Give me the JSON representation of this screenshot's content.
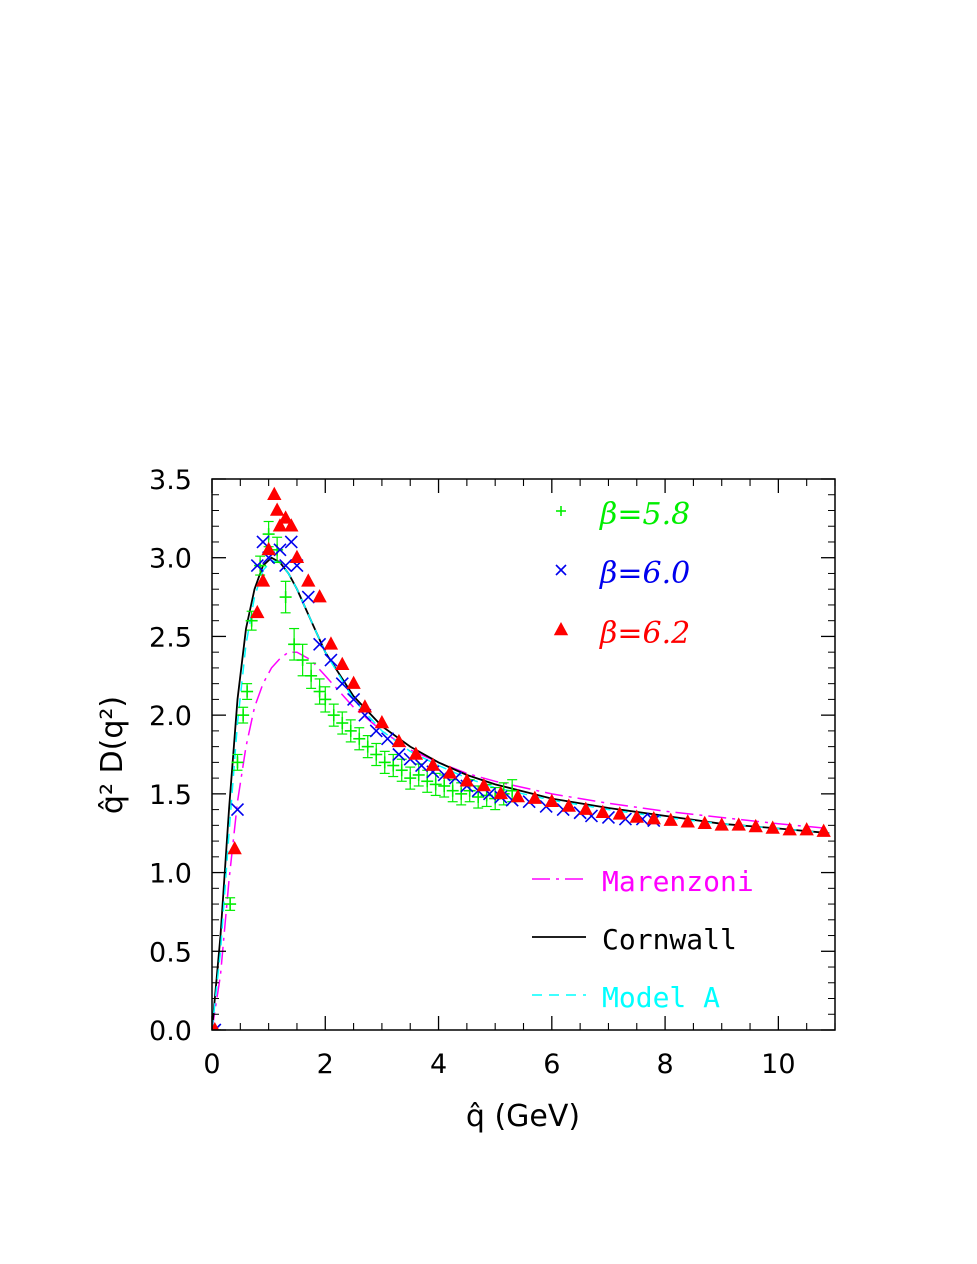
{
  "chart_data": {
    "type": "scatter",
    "xlabel": "q̂ (GeV)",
    "ylabel": "q̂² D(q²)",
    "xlim": [
      0,
      11
    ],
    "ylim": [
      0,
      3.5
    ],
    "x_ticks": [
      "0",
      "2",
      "4",
      "6",
      "8",
      "10"
    ],
    "y_ticks": [
      "0.0",
      "0.5",
      "1.0",
      "1.5",
      "2.0",
      "2.5",
      "3.0",
      "3.5"
    ],
    "legend_position": "top-right",
    "series": [
      {
        "name": "β=5.8",
        "marker": "plus-errorbar",
        "color": "#00ee00",
        "x": [
          0.05,
          0.32,
          0.45,
          0.55,
          0.62,
          0.7,
          0.85,
          1.0,
          1.15,
          1.3,
          1.45,
          1.6,
          1.75,
          1.9,
          2.0,
          2.15,
          2.3,
          2.45,
          2.6,
          2.75,
          2.9,
          3.05,
          3.2,
          3.35,
          3.5,
          3.65,
          3.8,
          3.95,
          4.1,
          4.25,
          4.4,
          4.55,
          4.7,
          4.85,
          5.0,
          5.15,
          5.3
        ],
        "y": [
          0.0,
          0.8,
          1.7,
          2.0,
          2.15,
          2.6,
          2.95,
          3.15,
          3.05,
          2.75,
          2.45,
          2.35,
          2.25,
          2.15,
          2.1,
          2.0,
          1.95,
          1.9,
          1.85,
          1.8,
          1.75,
          1.7,
          1.68,
          1.65,
          1.6,
          1.62,
          1.58,
          1.56,
          1.55,
          1.52,
          1.5,
          1.52,
          1.48,
          1.49,
          1.47,
          1.5,
          1.52
        ],
        "err": [
          0.0,
          0.04,
          0.05,
          0.05,
          0.05,
          0.06,
          0.06,
          0.08,
          0.08,
          0.1,
          0.1,
          0.1,
          0.08,
          0.08,
          0.08,
          0.07,
          0.07,
          0.07,
          0.07,
          0.07,
          0.07,
          0.07,
          0.07,
          0.07,
          0.07,
          0.07,
          0.07,
          0.07,
          0.07,
          0.07,
          0.07,
          0.07,
          0.07,
          0.07,
          0.07,
          0.07,
          0.07
        ]
      },
      {
        "name": "β=6.0",
        "marker": "cross",
        "color": "#0000ee",
        "x": [
          0.05,
          0.45,
          0.8,
          0.9,
          1.0,
          1.2,
          1.3,
          1.4,
          1.5,
          1.7,
          1.9,
          2.1,
          2.3,
          2.5,
          2.7,
          2.9,
          3.1,
          3.3,
          3.5,
          3.7,
          3.9,
          4.1,
          4.3,
          4.5,
          4.7,
          4.9,
          5.1,
          5.3,
          5.6,
          5.9,
          6.2,
          6.5,
          6.7,
          7.0,
          7.3,
          7.6,
          7.8
        ],
        "y": [
          0.0,
          1.4,
          2.95,
          3.1,
          3.0,
          3.05,
          2.95,
          3.1,
          2.95,
          2.75,
          2.45,
          2.35,
          2.2,
          2.1,
          2.0,
          1.9,
          1.85,
          1.75,
          1.72,
          1.68,
          1.64,
          1.62,
          1.6,
          1.55,
          1.52,
          1.5,
          1.48,
          1.46,
          1.45,
          1.42,
          1.4,
          1.38,
          1.36,
          1.35,
          1.34,
          1.34,
          1.33
        ]
      },
      {
        "name": "β=6.2",
        "marker": "filled-triangle",
        "color": "#ff0000",
        "x": [
          0.05,
          0.4,
          0.8,
          0.9,
          1.0,
          1.1,
          1.15,
          1.2,
          1.3,
          1.4,
          1.5,
          1.7,
          1.9,
          2.1,
          2.3,
          2.5,
          2.7,
          3.0,
          3.3,
          3.6,
          3.9,
          4.2,
          4.5,
          4.8,
          5.1,
          5.4,
          5.7,
          6.0,
          6.3,
          6.6,
          6.9,
          7.2,
          7.5,
          7.8,
          8.1,
          8.4,
          8.7,
          9.0,
          9.3,
          9.6,
          9.9,
          10.2,
          10.5,
          10.8
        ],
        "y": [
          0.0,
          1.15,
          2.65,
          2.85,
          3.05,
          3.4,
          3.3,
          3.2,
          3.25,
          3.2,
          3.0,
          2.85,
          2.75,
          2.45,
          2.32,
          2.2,
          2.05,
          1.95,
          1.83,
          1.75,
          1.68,
          1.63,
          1.58,
          1.55,
          1.5,
          1.48,
          1.47,
          1.45,
          1.42,
          1.4,
          1.38,
          1.37,
          1.35,
          1.34,
          1.33,
          1.32,
          1.31,
          1.3,
          1.3,
          1.29,
          1.28,
          1.27,
          1.27,
          1.26
        ]
      },
      {
        "name": "Marenzoni",
        "type": "line",
        "style": "dash-dot",
        "color": "#ff00ff",
        "x": [
          0.0,
          0.15,
          0.3,
          0.45,
          0.6,
          0.75,
          0.9,
          1.05,
          1.2,
          1.35,
          1.5,
          1.75,
          2.0,
          2.5,
          3.0,
          3.5,
          4.0,
          4.5,
          5.0,
          6.0,
          7.0,
          8.0,
          9.0,
          10.0,
          10.9
        ],
        "y": [
          0.0,
          0.35,
          0.95,
          1.45,
          1.8,
          2.05,
          2.2,
          2.3,
          2.36,
          2.4,
          2.4,
          2.35,
          2.25,
          2.05,
          1.9,
          1.78,
          1.7,
          1.63,
          1.58,
          1.5,
          1.44,
          1.39,
          1.35,
          1.31,
          1.28
        ]
      },
      {
        "name": "Cornwall",
        "type": "line",
        "style": "solid",
        "color": "#000000",
        "x": [
          0.0,
          0.15,
          0.3,
          0.45,
          0.6,
          0.75,
          0.9,
          1.05,
          1.2,
          1.35,
          1.5,
          1.75,
          2.0,
          2.5,
          3.0,
          3.5,
          4.0,
          4.5,
          5.0,
          6.0,
          7.0,
          8.0,
          9.0,
          10.0,
          10.9
        ],
        "y": [
          0.0,
          0.6,
          1.4,
          2.1,
          2.55,
          2.8,
          2.95,
          3.0,
          2.97,
          2.9,
          2.8,
          2.6,
          2.4,
          2.12,
          1.93,
          1.8,
          1.7,
          1.62,
          1.56,
          1.47,
          1.41,
          1.36,
          1.31,
          1.28,
          1.25
        ]
      },
      {
        "name": "Model A",
        "type": "line",
        "style": "dashed",
        "color": "#00ffff",
        "x": [
          0.0,
          0.15,
          0.3,
          0.45,
          0.6,
          0.75,
          0.9,
          1.05,
          1.2,
          1.35,
          1.5,
          1.75,
          2.0,
          2.5,
          3.0,
          3.5,
          4.0,
          4.5,
          5.0,
          6.0,
          7.0,
          8.0,
          9.0,
          10.0,
          10.9
        ],
        "y": [
          0.0,
          0.5,
          1.25,
          1.95,
          2.45,
          2.75,
          2.92,
          2.98,
          2.97,
          2.9,
          2.8,
          2.6,
          2.4,
          2.1,
          1.9,
          1.77,
          1.68,
          1.6,
          1.54,
          1.46,
          1.4,
          1.35,
          1.31,
          1.28,
          1.25
        ]
      }
    ]
  }
}
